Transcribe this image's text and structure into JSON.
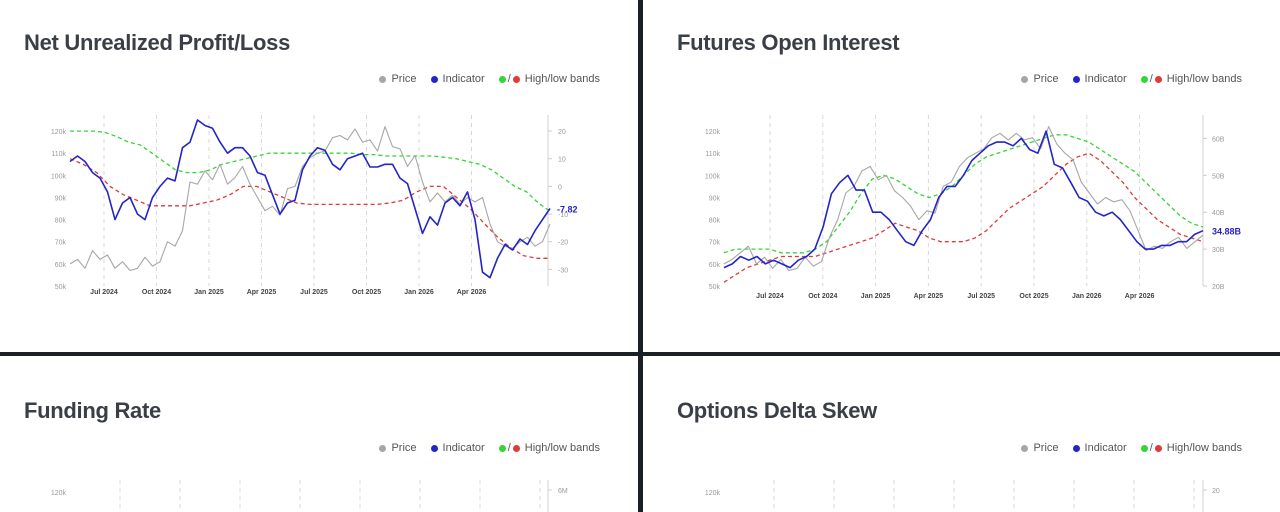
{
  "legend": {
    "price": "Price",
    "indicator": "Indicator",
    "bands": "High/low bands",
    "slash": "/"
  },
  "colors": {
    "price": "#a6a6a6",
    "indicator": "#2424c8",
    "high_band": "#33d633",
    "low_band": "#e03a3a"
  },
  "chart_data": [
    {
      "type": "line",
      "title": "Net Unrealized Profit/Loss",
      "x_labels": [
        "Jul 2024",
        "Oct 2024",
        "Jan 2025",
        "Apr 2025",
        "Jul 2025",
        "Oct 2025",
        "Jan 2026",
        "Apr 2026"
      ],
      "y_left_ticks": [
        "50k",
        "60k",
        "70k",
        "80k",
        "90k",
        "100k",
        "110k",
        "120k"
      ],
      "y_left_range": [
        50000,
        125000
      ],
      "y_right_ticks": [
        "-30",
        "-20",
        "-10",
        "0",
        "10",
        "20"
      ],
      "y_right_range": [
        -36,
        24
      ],
      "last_value_label": "-7.82",
      "series": [
        {
          "name": "Price",
          "axis": "left",
          "values": [
            60000,
            62000,
            58000,
            66000,
            62000,
            64000,
            58000,
            61000,
            57000,
            58000,
            63000,
            59000,
            61000,
            70000,
            68000,
            75000,
            97000,
            96000,
            102000,
            98000,
            105000,
            96000,
            99000,
            104000,
            96000,
            90000,
            84000,
            86000,
            82000,
            94000,
            95000,
            104000,
            108000,
            110000,
            111000,
            117000,
            118000,
            116000,
            121000,
            115000,
            116000,
            111000,
            122000,
            113000,
            112000,
            104000,
            109000,
            97000,
            88000,
            92000,
            88000,
            91000,
            87000,
            90000,
            88000,
            90000,
            78000,
            70000,
            68000,
            67000,
            70000,
            72000,
            68000,
            70000,
            78000
          ]
        },
        {
          "name": "Indicator",
          "axis": "right",
          "values": [
            9,
            11,
            9,
            5,
            3,
            -2,
            -12,
            -6,
            -4,
            -10,
            -12,
            -4,
            0,
            3,
            2,
            14,
            16,
            24,
            22,
            21,
            16,
            12,
            14,
            14,
            11,
            5,
            4,
            -3,
            -10,
            -6,
            -5,
            6,
            11,
            14,
            13,
            8,
            6,
            10,
            11,
            12,
            7,
            7,
            8,
            8,
            3,
            1,
            -8,
            -17,
            -11,
            -14,
            -6,
            -4,
            -7,
            -2,
            -12,
            -31,
            -33,
            -26,
            -21,
            -23,
            -19,
            -21,
            -16,
            -12,
            -8
          ]
        },
        {
          "name": "High band",
          "axis": "right",
          "values": [
            20,
            20,
            20,
            19.5,
            18,
            16,
            15,
            12,
            9,
            6,
            5,
            5,
            6,
            8,
            9,
            10,
            11,
            12,
            12,
            12,
            12,
            12,
            12,
            12,
            12,
            11.5,
            11.5,
            11,
            11,
            11,
            11,
            11,
            10.5,
            10,
            9,
            8,
            6,
            3,
            0,
            -2,
            -6,
            -9
          ]
        },
        {
          "name": "Low band",
          "axis": "right",
          "values": [
            10,
            8,
            5,
            0,
            -3,
            -5,
            -7,
            -7,
            -7,
            -7,
            -6,
            -5,
            -3,
            0,
            0,
            -2,
            -4,
            -6,
            -6.5,
            -6.5,
            -6.5,
            -6.5,
            -6.5,
            -6.5,
            -6,
            -5,
            -2,
            0,
            0,
            -4,
            -8,
            -13,
            -18,
            -22,
            -25,
            -26,
            -26
          ]
        }
      ]
    },
    {
      "type": "line",
      "title": "Futures Open Interest",
      "x_labels": [
        "Jul 2024",
        "Oct 2024",
        "Jan 2025",
        "Apr 2025",
        "Jul 2025",
        "Oct 2025",
        "Jan 2026",
        "Apr 2026"
      ],
      "y_left_ticks": [
        "50k",
        "60k",
        "70k",
        "80k",
        "90k",
        "100k",
        "110k",
        "120k"
      ],
      "y_left_range": [
        50000,
        125000
      ],
      "y_right_ticks": [
        "20B",
        "30B",
        "40B",
        "50B",
        "60B"
      ],
      "y_right_range": [
        20,
        65
      ],
      "last_value_label": "34.88B",
      "series": [
        {
          "name": "Price",
          "axis": "left",
          "values": [
            60000,
            62000,
            65000,
            68000,
            60000,
            63000,
            58000,
            62000,
            57000,
            58000,
            63000,
            59000,
            61000,
            72000,
            80000,
            92000,
            95000,
            102000,
            104000,
            98000,
            100000,
            93000,
            90000,
            86000,
            80000,
            84000,
            83000,
            95000,
            97000,
            104000,
            108000,
            110000,
            112000,
            117000,
            119000,
            116000,
            119000,
            116000,
            117000,
            112000,
            122000,
            114000,
            110000,
            107000,
            97000,
            92000,
            87000,
            90000,
            88000,
            89000,
            84000,
            75000,
            66000,
            68000,
            67000,
            70000,
            72000,
            67000,
            70000,
            73000
          ]
        },
        {
          "name": "Indicator",
          "axis": "right",
          "values": [
            25,
            26,
            28,
            27,
            28,
            26,
            27,
            26,
            25,
            27,
            28,
            30,
            36,
            45,
            48,
            50,
            46,
            46,
            40,
            40,
            38,
            35,
            32,
            31,
            35,
            38,
            44,
            47,
            47,
            50,
            54,
            56,
            58,
            59,
            59,
            58,
            60,
            57,
            56,
            62,
            53,
            52,
            48,
            44,
            43,
            40,
            39,
            40,
            38,
            35,
            32,
            30,
            30,
            31,
            31,
            32,
            32,
            34,
            35
          ]
        },
        {
          "name": "High band",
          "axis": "right",
          "values": [
            29,
            30,
            30,
            30,
            30,
            29,
            29,
            29,
            30,
            32,
            36,
            40,
            45,
            49,
            50,
            49,
            47,
            45,
            44,
            45,
            47,
            50,
            53,
            55,
            56,
            57,
            58,
            59,
            60,
            61,
            61,
            60,
            59,
            57,
            55,
            53,
            51,
            48,
            45,
            42,
            39,
            37,
            36
          ]
        },
        {
          "name": "Low band",
          "axis": "right",
          "values": [
            21,
            23,
            25,
            26,
            27,
            28,
            28,
            28,
            28,
            29,
            30,
            31,
            32,
            33,
            35,
            37,
            36,
            35,
            33,
            32,
            32,
            32,
            33,
            35,
            38,
            41,
            43,
            45,
            47,
            50,
            53,
            55,
            56,
            54,
            51,
            48,
            44,
            41,
            38,
            36,
            34,
            33,
            32
          ]
        }
      ]
    },
    {
      "type": "line",
      "title": "Funding Rate",
      "y_left_ticks": [
        "120k"
      ],
      "y_right_ticks": [
        "6M"
      ]
    },
    {
      "type": "line",
      "title": "Options Delta Skew",
      "y_left_ticks": [
        "120k"
      ],
      "y_right_ticks": [
        "20"
      ]
    }
  ]
}
